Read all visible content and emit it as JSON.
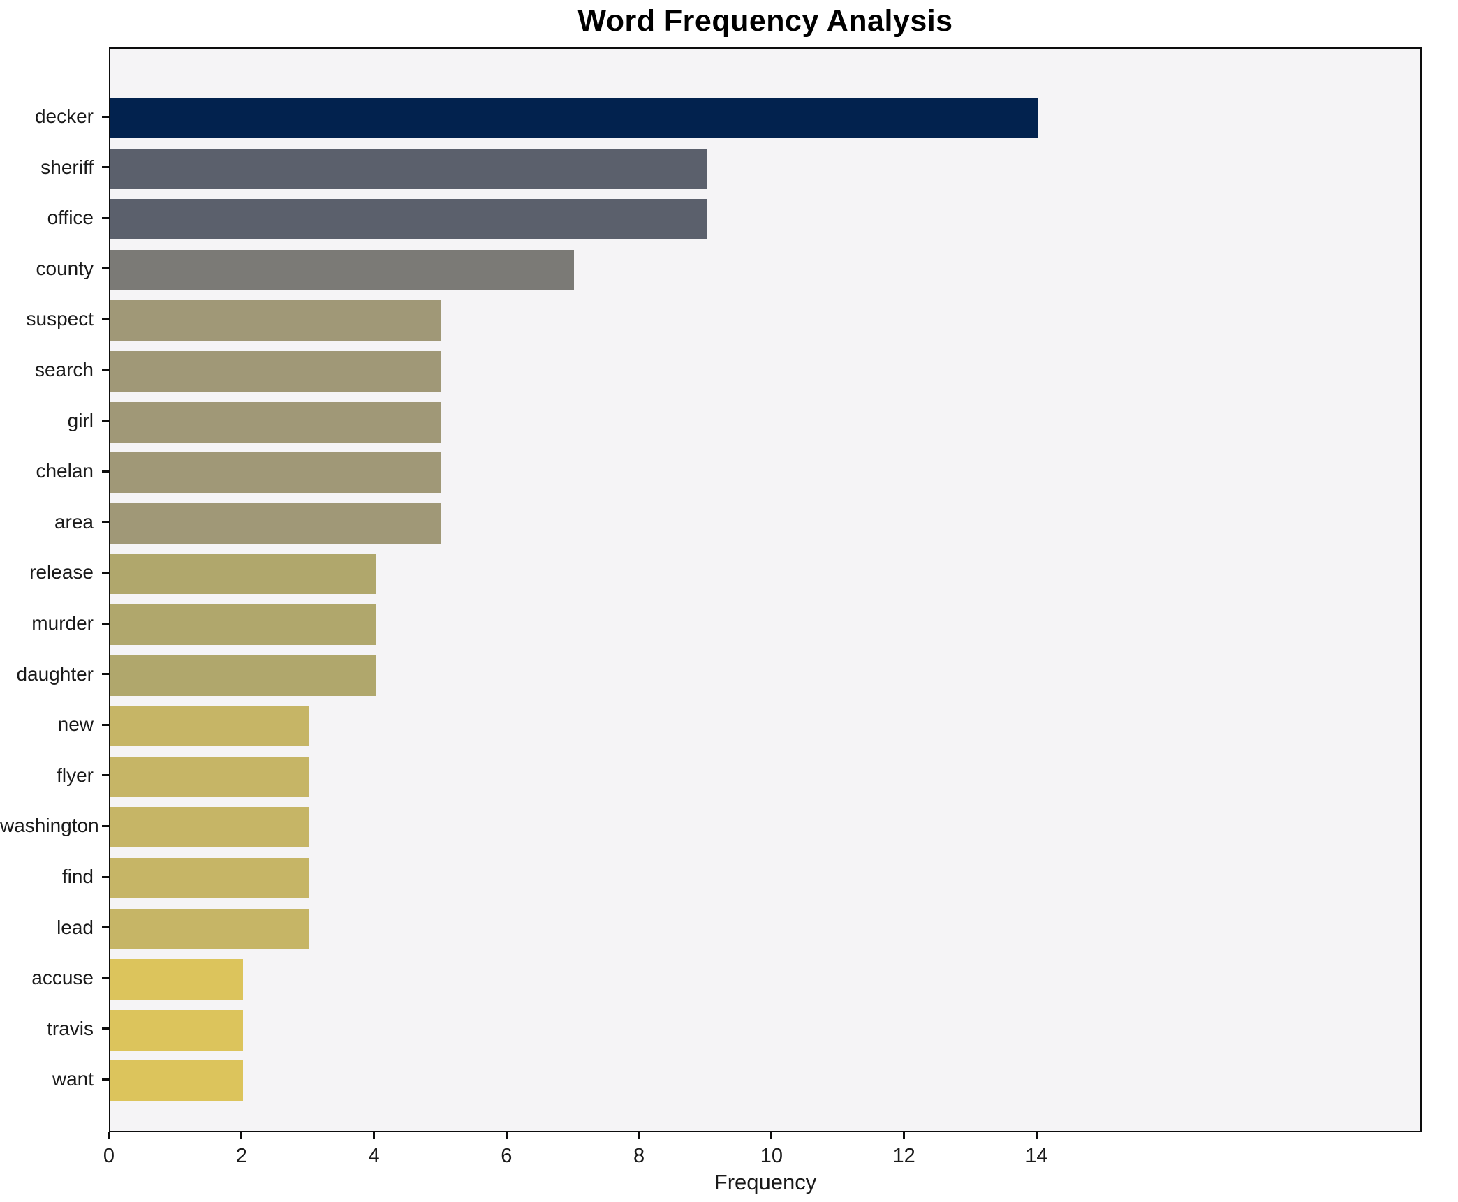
{
  "chart_data": {
    "type": "bar",
    "orientation": "horizontal",
    "title": "Word Frequency Analysis",
    "xlabel": "Frequency",
    "ylabel": "",
    "categories": [
      "decker",
      "sheriff",
      "office",
      "county",
      "suspect",
      "search",
      "girl",
      "chelan",
      "area",
      "release",
      "murder",
      "daughter",
      "new",
      "flyer",
      "washington",
      "find",
      "lead",
      "accuse",
      "travis",
      "want"
    ],
    "values": [
      14,
      9,
      9,
      7,
      5,
      5,
      5,
      5,
      5,
      4,
      4,
      4,
      3,
      3,
      3,
      3,
      3,
      2,
      2,
      2
    ],
    "bar_colors": [
      "#02224e",
      "#5b606c",
      "#5b606c",
      "#7b7a76",
      "#a09877",
      "#a09877",
      "#a09877",
      "#a09877",
      "#a09877",
      "#b0a76c",
      "#b0a76c",
      "#b0a76c",
      "#c6b566",
      "#c6b566",
      "#c6b566",
      "#c6b566",
      "#c6b566",
      "#dcc45c",
      "#dcc45c",
      "#dcc45c"
    ],
    "xticks": [
      0,
      2,
      4,
      6,
      8,
      10,
      12,
      14
    ],
    "xlim": [
      0,
      19.76
    ],
    "grid": false,
    "legend": "none",
    "plot_background": "#f5f4f6",
    "figure_background": "#ffffff",
    "frame_color": "#0d0d0d"
  }
}
